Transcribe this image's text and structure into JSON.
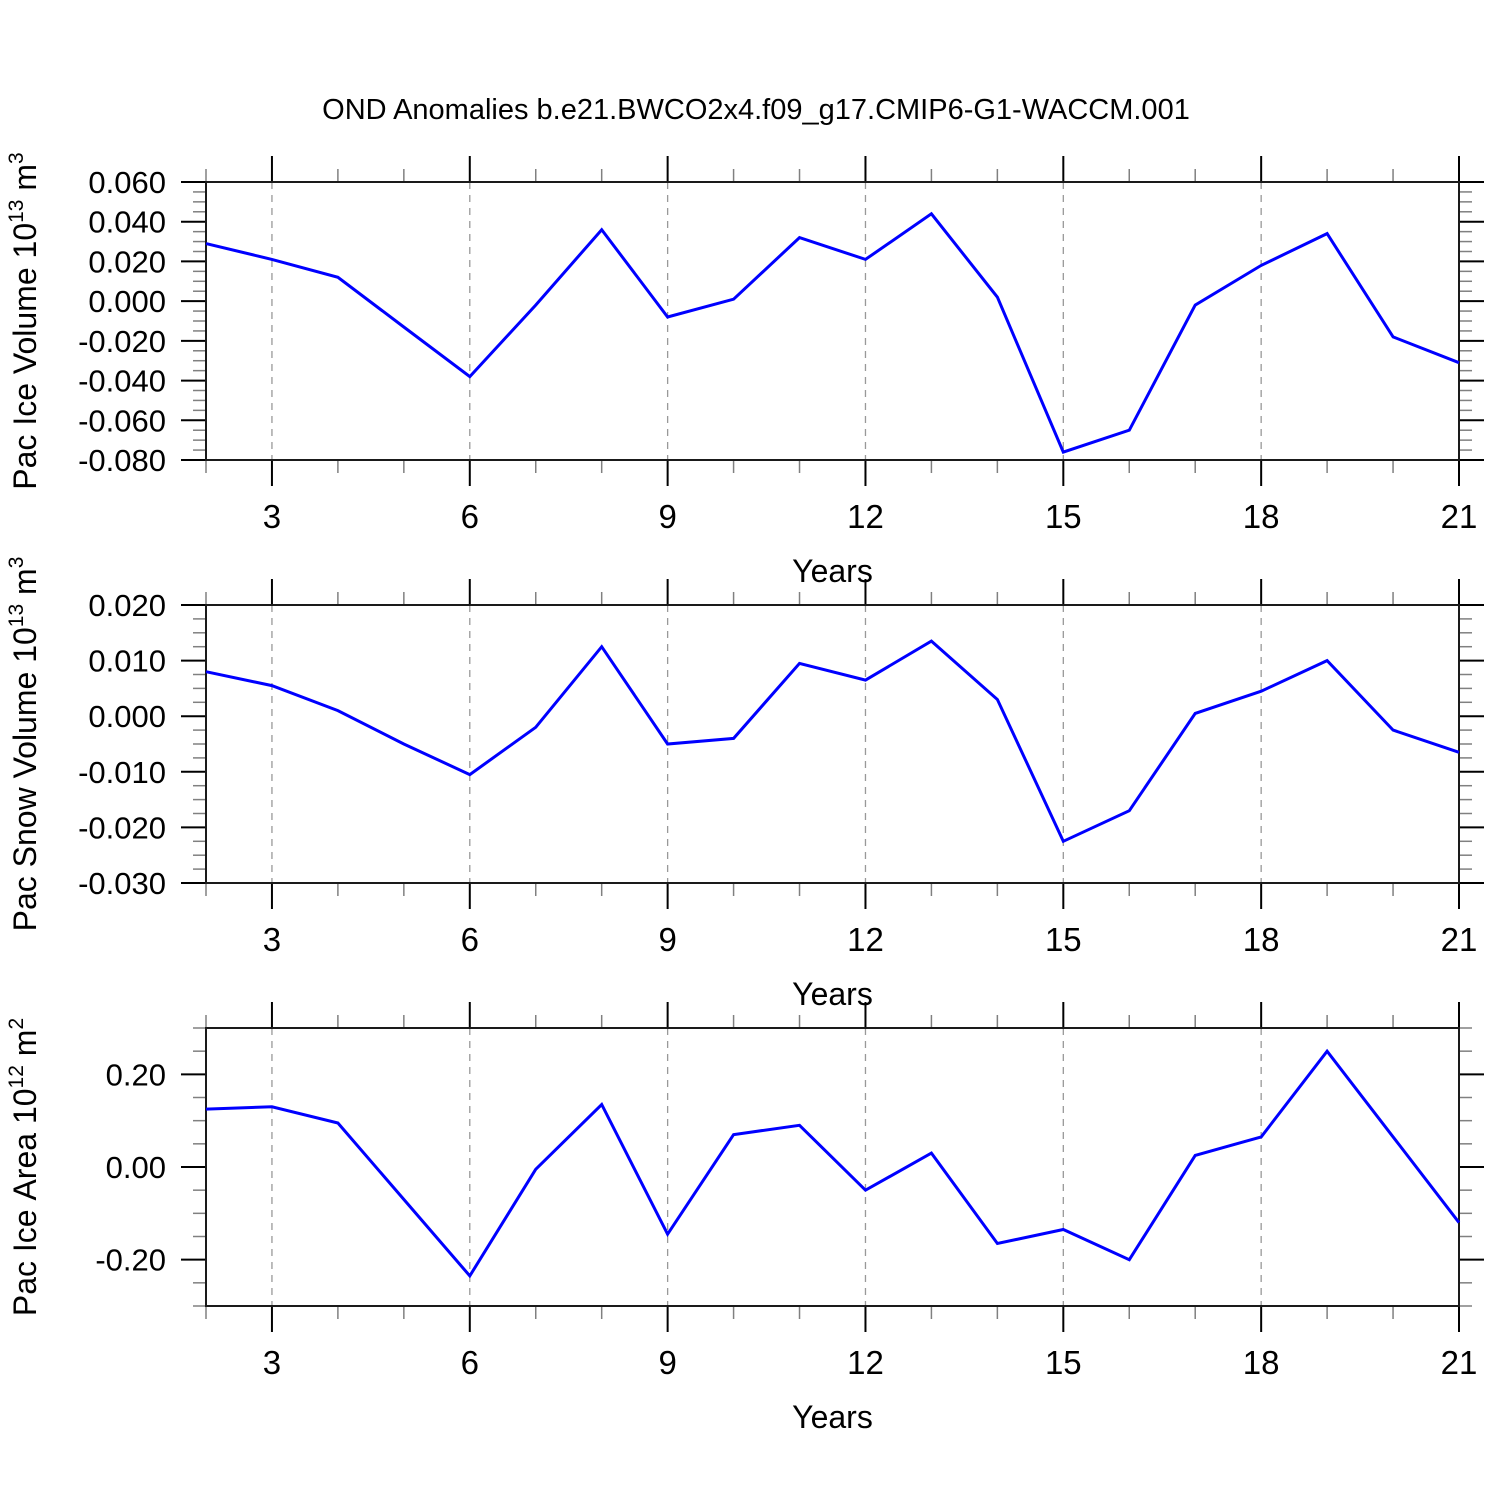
{
  "title": "OND Anomalies b.e21.BWCO2x4.f09_g17.CMIP6-G1-WACCM.001",
  "colors": {
    "line": "#0000ff",
    "axis": "#000000",
    "frame": "#1a1a1a",
    "gridline": "#999999",
    "minor_tick": "#808080",
    "background": "#ffffff",
    "text": "#000000"
  },
  "x_axis": {
    "label": "Years",
    "start": 2,
    "end": 21,
    "major_tick_values": [
      3,
      6,
      9,
      12,
      15,
      18,
      21
    ],
    "major_tick_labels": [
      "3",
      "6",
      "9",
      "12",
      "15",
      "18",
      "21"
    ],
    "gridline_values": [
      3,
      6,
      9,
      12,
      15,
      18
    ],
    "minor_step": 1
  },
  "chart_data": [
    {
      "type": "line",
      "title": "OND Anomalies b.e21.BWCO2x4.f09_g17.CMIP6-G1-WACCM.001",
      "ylabel": "Pac Ice Volume 10¹³ m³",
      "ylabel_parts": {
        "prefix": "Pac Ice Volume 10",
        "exp": "13",
        "unit": " m",
        "unit_exp": "3"
      },
      "xlabel": "Years",
      "x": [
        2,
        3,
        4,
        5,
        6,
        7,
        8,
        9,
        10,
        11,
        12,
        13,
        14,
        15,
        16,
        17,
        18,
        19,
        20,
        21
      ],
      "values": [
        0.029,
        0.021,
        0.012,
        -0.013,
        -0.038,
        -0.002,
        0.036,
        -0.008,
        0.001,
        0.032,
        0.021,
        0.044,
        0.002,
        -0.076,
        -0.065,
        -0.002,
        0.018,
        0.034,
        -0.018,
        -0.031
      ],
      "ylim": [
        -0.08,
        0.06
      ],
      "ytick_values": [
        0.06,
        0.04,
        0.02,
        0.0,
        -0.02,
        -0.04,
        -0.06,
        -0.08
      ],
      "ytick_labels": [
        "0.060",
        "0.040",
        "0.020",
        "0.000",
        "-0.020",
        "-0.040",
        "-0.060",
        "-0.080"
      ],
      "yminor_step": 0.005,
      "grid": "x-dashed"
    },
    {
      "type": "line",
      "title": "",
      "ylabel": "Pac Snow Volume 10¹³ m³",
      "ylabel_parts": {
        "prefix": "Pac Snow Volume 10",
        "exp": "13",
        "unit": " m",
        "unit_exp": "3"
      },
      "xlabel": "Years",
      "x": [
        2,
        3,
        4,
        5,
        6,
        7,
        8,
        9,
        10,
        11,
        12,
        13,
        14,
        15,
        16,
        17,
        18,
        19,
        20,
        21
      ],
      "values": [
        0.008,
        0.0055,
        0.001,
        -0.005,
        -0.0105,
        -0.002,
        0.0125,
        -0.005,
        -0.004,
        0.0095,
        0.0065,
        0.0135,
        0.003,
        -0.0225,
        -0.017,
        0.0005,
        0.0045,
        0.01,
        -0.0025,
        -0.0065
      ],
      "ylim": [
        -0.03,
        0.02
      ],
      "ytick_values": [
        0.02,
        0.01,
        0.0,
        -0.01,
        -0.02,
        -0.03
      ],
      "ytick_labels": [
        "0.020",
        "0.010",
        "0.000",
        "-0.010",
        "-0.020",
        "-0.030"
      ],
      "yminor_step": 0.0025,
      "grid": "x-dashed"
    },
    {
      "type": "line",
      "title": "",
      "ylabel": "Pac Ice Area 10¹² m²",
      "ylabel_parts": {
        "prefix": "Pac Ice Area 10",
        "exp": "12",
        "unit": " m",
        "unit_exp": "2"
      },
      "xlabel": "Years",
      "x": [
        2,
        3,
        4,
        5,
        6,
        7,
        8,
        9,
        10,
        11,
        12,
        13,
        14,
        15,
        16,
        17,
        18,
        19,
        20,
        21
      ],
      "values": [
        0.125,
        0.13,
        0.095,
        -0.07,
        -0.235,
        -0.005,
        0.135,
        -0.145,
        0.07,
        0.09,
        -0.05,
        0.03,
        -0.165,
        -0.135,
        -0.2,
        0.025,
        0.065,
        0.25,
        0.065,
        -0.12
      ],
      "ylim": [
        -0.3,
        0.3
      ],
      "ytick_values": [
        0.2,
        0.0,
        -0.2
      ],
      "ytick_labels": [
        "0.20",
        "0.00",
        "-0.20"
      ],
      "yminor_step": 0.05,
      "grid": "x-dashed"
    }
  ]
}
